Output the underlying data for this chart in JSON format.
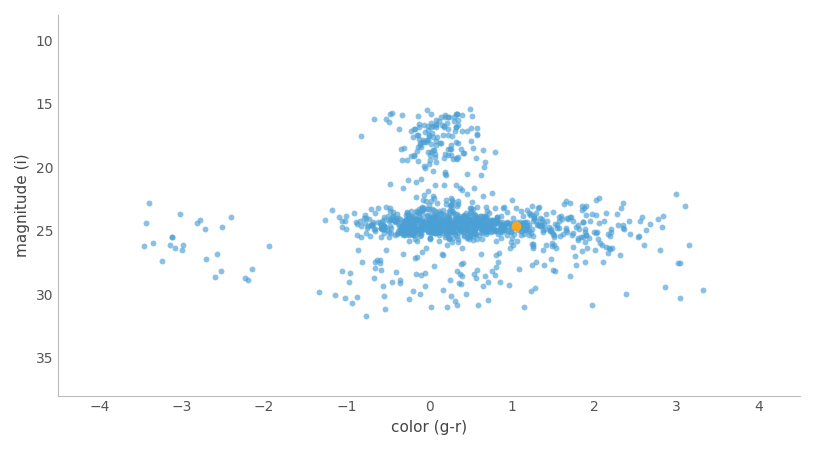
{
  "xlabel": "color (g-r)",
  "ylabel": "magnitude (i)",
  "xlim": [
    -4.5,
    4.5
  ],
  "ylim": [
    38,
    8
  ],
  "xticks": [
    -4,
    -3,
    -2,
    -1,
    0,
    1,
    2,
    3,
    4
  ],
  "yticks": [
    10,
    15,
    20,
    25,
    30,
    35
  ],
  "blue_color": "#4a9fd4",
  "orange_color": "#f5a623",
  "highlight_x": 1.05,
  "highlight_y": 24.6,
  "figsize": [
    8.15,
    4.5
  ],
  "dpi": 100,
  "seed": 77,
  "scatter_alpha": 0.65,
  "scatter_size": 18,
  "highlight_size": 50
}
